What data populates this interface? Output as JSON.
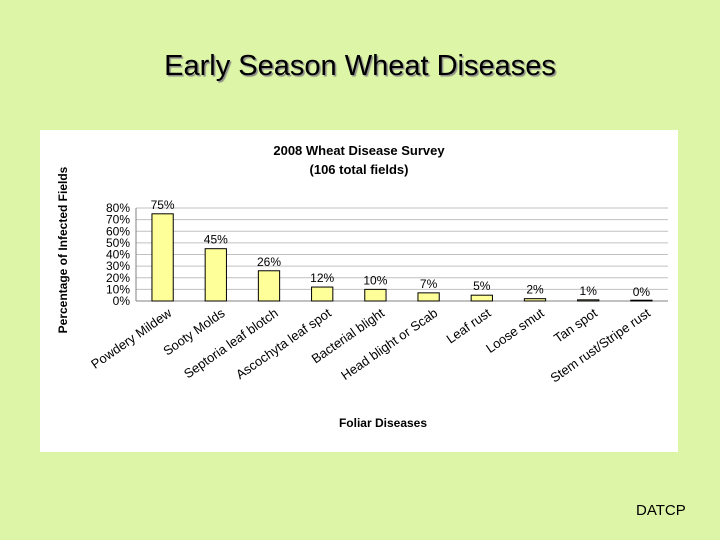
{
  "slide": {
    "title": "Early Season Wheat Diseases",
    "footer": "DATCP"
  },
  "colors": {
    "background": "#ddf5a6",
    "bar_fill": "#ffff99",
    "bar_stroke": "#000000",
    "grid": "#c0c0c0"
  },
  "chart_data": {
    "type": "bar",
    "title": "2008 Wheat Disease Survey",
    "subtitle": "(106 total fields)",
    "xlabel": "Foliar Diseases",
    "ylabel": "Percentage of Infected Fields",
    "ylim": [
      0,
      80
    ],
    "yticks": [
      "0%",
      "10%",
      "20%",
      "30%",
      "40%",
      "50%",
      "60%",
      "70%",
      "80%"
    ],
    "grid": true,
    "categories": [
      "Powdery Mildew",
      "Sooty Molds",
      "Septoria leaf blotch",
      "Ascochyta leaf spot",
      "Bacterial blight",
      "Head blight or Scab",
      "Leaf rust",
      "Loose smut",
      "Tan spot",
      "Stem rust/Stripe rust"
    ],
    "values": [
      75,
      45,
      26,
      12,
      10,
      7,
      5,
      2,
      1,
      0
    ],
    "data_labels": [
      "75%",
      "45%",
      "26%",
      "12%",
      "10%",
      "7%",
      "5%",
      "2%",
      "1%",
      "0%"
    ]
  }
}
